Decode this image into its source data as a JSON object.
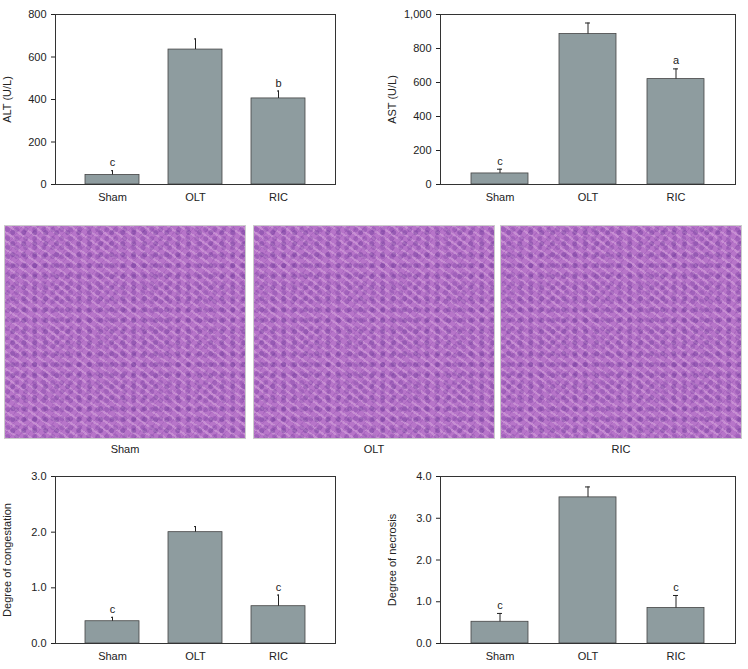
{
  "chart_data": [
    {
      "type": "bar",
      "ylabel": "ALT (U/L)",
      "categories": [
        "Sham",
        "OLT",
        "RIC"
      ],
      "values": [
        45,
        635,
        405
      ],
      "errors": [
        20,
        50,
        35
      ],
      "annotations": [
        "c",
        null,
        "b"
      ],
      "color": "#8e9c9f",
      "ylim": [
        0,
        800
      ],
      "yticks": [
        0,
        200,
        400,
        600,
        800
      ]
    },
    {
      "type": "bar",
      "ylabel": "AST (U/L)",
      "categories": [
        "Sham",
        "OLT",
        "RIC"
      ],
      "values": [
        65,
        885,
        620
      ],
      "errors": [
        25,
        65,
        60
      ],
      "annotations": [
        "c",
        null,
        "a"
      ],
      "color": "#8e9c9f",
      "ylim": [
        0,
        1000
      ],
      "yticks": [
        0,
        200,
        400,
        600,
        800,
        1000
      ]
    },
    {
      "type": "bar",
      "ylabel": "Degree of congestation",
      "categories": [
        "Sham",
        "OLT",
        "RIC"
      ],
      "values": [
        0.4,
        2.0,
        0.67
      ],
      "errors": [
        0.07,
        0.1,
        0.2
      ],
      "annotations": [
        "c",
        null,
        "c"
      ],
      "color": "#8e9c9f",
      "ylim": [
        0,
        3
      ],
      "yticks": [
        0,
        1,
        2,
        3
      ]
    },
    {
      "type": "bar",
      "ylabel": "Degree of necrosis",
      "categories": [
        "Sham",
        "OLT",
        "RIC"
      ],
      "values": [
        0.52,
        3.5,
        0.85
      ],
      "errors": [
        0.2,
        0.25,
        0.3
      ],
      "annotations": [
        "c",
        null,
        "c"
      ],
      "color": "#8e9c9f",
      "ylim": [
        0,
        4
      ],
      "yticks": [
        0,
        1,
        2,
        3,
        4
      ]
    }
  ],
  "micrographs": {
    "labels": [
      "Sham",
      "OLT",
      "RIC"
    ]
  }
}
